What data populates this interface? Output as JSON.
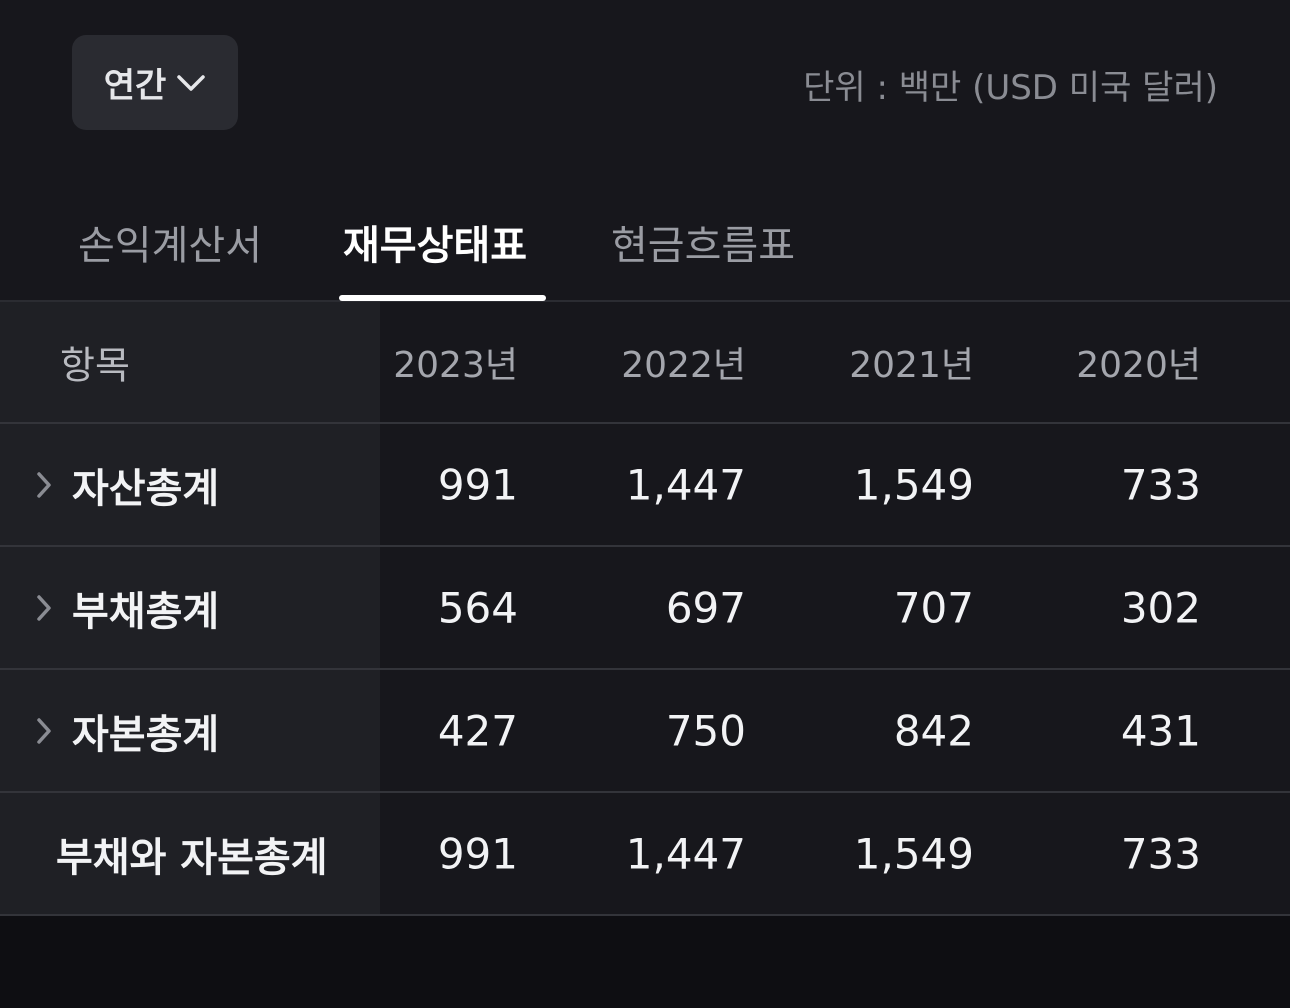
{
  "period_selector": {
    "label": "연간",
    "icon": "chevron-down-icon"
  },
  "unit_note": "단위 : 백만 (USD 미국 달러)",
  "tabs": [
    {
      "label": "손익계산서",
      "active": false
    },
    {
      "label": "재무상태표",
      "active": true
    },
    {
      "label": "현금흐름표",
      "active": false
    }
  ],
  "table": {
    "header": {
      "label": "항목",
      "years": [
        "2023년",
        "2022년",
        "2021년",
        "2020년"
      ]
    },
    "rows": [
      {
        "label": "자산총계",
        "expandable": true,
        "values": [
          "991",
          "1,447",
          "1,549",
          "733"
        ]
      },
      {
        "label": "부채총계",
        "expandable": true,
        "values": [
          "564",
          "697",
          "707",
          "302"
        ]
      },
      {
        "label": "자본총계",
        "expandable": true,
        "values": [
          "427",
          "750",
          "842",
          "431"
        ]
      },
      {
        "label": "부채와 자본총계",
        "expandable": false,
        "values": [
          "991",
          "1,447",
          "1,549",
          "733"
        ]
      }
    ]
  },
  "colors": {
    "background": "#17171c",
    "first_column": "#1f2025",
    "text_primary": "#f2f3f5",
    "text_secondary": "#8a8c93"
  }
}
